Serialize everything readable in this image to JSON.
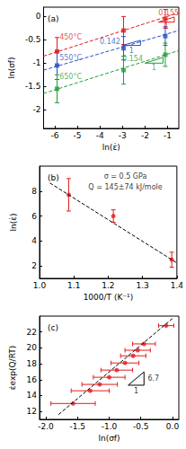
{
  "chart_data": [
    {
      "type": "scatter",
      "title": "(a)",
      "x_label": "ln(ε̇)",
      "y_label": "ln(σf)",
      "xlim": [
        -6.5,
        -0.5
      ],
      "xticks": [
        -6,
        -5,
        -4,
        -3,
        -2,
        -1
      ],
      "ylim": [
        -2.4,
        0.2
      ],
      "yticks": [
        -2,
        -1.5,
        -1,
        -0.5,
        0
      ],
      "marker": "square",
      "series": [
        {
          "name": "450°C",
          "color": "#e41a1c",
          "x": [
            -5.9,
            -2.95,
            -1.1
          ],
          "values": [
            -0.75,
            -0.3,
            -0.05
          ],
          "y_errors": [
            0.3,
            0.3,
            0.2
          ],
          "fit": {
            "x": [
              -6.5,
              -0.5
            ],
            "values": [
              -0.85,
              0.08
            ],
            "color": "#e41a1c"
          },
          "name_at": [
            -5.3,
            -0.45
          ]
        },
        {
          "name": "550°C",
          "color": "#2b50c8",
          "x": [
            -5.9,
            -2.95,
            -1.1
          ],
          "values": [
            -1.05,
            -0.68,
            -0.42
          ],
          "y_errors": [
            0.3,
            0.25,
            0.2
          ],
          "fit": {
            "x": [
              -6.5,
              -0.5
            ],
            "values": [
              -1.15,
              -0.3
            ],
            "color": "#2b50c8"
          },
          "name_at": [
            -5.3,
            -0.88
          ]
        },
        {
          "name": "650°C",
          "color": "#1f9e3a",
          "x": [
            -5.9,
            -2.95,
            -1.1
          ],
          "values": [
            -1.55,
            -1.15,
            -0.82
          ],
          "y_errors": [
            0.3,
            0.3,
            0.25
          ],
          "fit": {
            "x": [
              -6.5,
              -0.5
            ],
            "values": [
              -1.65,
              -0.73
            ],
            "color": "#1f9e3a"
          },
          "name_at": [
            -5.3,
            -1.3
          ]
        }
      ],
      "annotations": [
        {
          "text": "0.155",
          "x": -0.95,
          "y": 0.08,
          "color": "#e41a1c"
        },
        {
          "text": "1",
          "x": -1.05,
          "y": -0.22,
          "color": "#e41a1c"
        },
        {
          "text": "0.142",
          "x": -3.55,
          "y": -0.55,
          "color": "#2b50c8"
        },
        {
          "text": "1",
          "x": -2.6,
          "y": -0.73,
          "color": "#2b50c8"
        },
        {
          "text": "0.154",
          "x": -2.55,
          "y": -0.9,
          "color": "#1f9e3a"
        },
        {
          "text": "1",
          "x": -1.6,
          "y": -1.1,
          "color": "#1f9e3a"
        }
      ],
      "triangles": [
        {
          "points": [
            [
              -1.4,
              -0.12
            ],
            [
              -0.7,
              -0.12
            ],
            [
              -0.7,
              -0.01
            ]
          ],
          "color": "#e41a1c"
        },
        {
          "points": [
            [
              -3.0,
              -0.62
            ],
            [
              -2.2,
              -0.62
            ],
            [
              -2.2,
              -0.51
            ]
          ],
          "color": "#2b50c8"
        },
        {
          "points": [
            [
              -2.0,
              -1.0
            ],
            [
              -1.2,
              -1.0
            ],
            [
              -1.2,
              -0.88
            ]
          ],
          "color": "#1f9e3a"
        }
      ]
    },
    {
      "type": "scatter",
      "title": "(b)",
      "x_label": "1000/T (K⁻¹)",
      "y_label": "ln(ε̇)",
      "xlim": [
        1.0,
        1.4
      ],
      "xticks": [
        {
          "value": 1,
          "label": "1.0"
        },
        1.1,
        1.2,
        1.3,
        1.4
      ],
      "ylim": [
        1,
        10
      ],
      "yticks": [
        2,
        4,
        6,
        8
      ],
      "marker": "circle",
      "series": [
        {
          "color": "#e41a1c",
          "x": [
            1.085,
            1.215,
            1.385
          ],
          "values": [
            7.7,
            6.0,
            2.5
          ],
          "y_errors": [
            1.3,
            0.5,
            0.6
          ],
          "fit": {
            "x": [
              1.03,
              1.4
            ],
            "values": [
              8.65,
              2.24
            ],
            "color": "#000000"
          }
        }
      ],
      "annotations": [
        {
          "text": "σ = 0.5 GPa",
          "x": 1.25,
          "y": 9.2,
          "color": "#000000"
        },
        {
          "text": "Q = 145±74 kJ/mole",
          "x": 1.25,
          "y": 8.3,
          "color": "#000000"
        }
      ],
      "triangles": []
    },
    {
      "type": "scatter",
      "title": "(c)",
      "x_label": "ln(σf)",
      "y_label": "ε̇exp(Q/RT)",
      "xlim": [
        -2.1,
        0.1
      ],
      "xticks": [
        {
          "value": -2,
          "label": "-2.0"
        },
        -1.5,
        {
          "value": -1,
          "label": "-1.0"
        },
        -0.5,
        {
          "value": 0,
          "label": "0.0"
        }
      ],
      "ylim": [
        11,
        24
      ],
      "yticks": [
        12,
        14,
        16,
        18,
        20,
        22
      ],
      "marker": "circle",
      "series": [
        {
          "color": "#e41a1c",
          "x": [
            -1.57,
            -1.3,
            -1.15,
            -1.0,
            -0.88,
            -0.75,
            -0.62,
            -0.55,
            -0.45,
            -0.1
          ],
          "values": [
            13.0,
            14.6,
            15.4,
            16.3,
            17.2,
            18.1,
            19.0,
            19.7,
            20.5,
            22.8
          ],
          "x_errors": [
            0.35,
            0.3,
            0.28,
            0.25,
            0.25,
            0.22,
            0.2,
            0.2,
            0.18,
            0.12
          ],
          "fit": {
            "x": [
              -1.8,
              0.0
            ],
            "values": [
              11.6,
              23.7
            ],
            "color": "#000000"
          }
        }
      ],
      "annotations": [
        {
          "text": "6.7",
          "x": -0.3,
          "y": 16.1,
          "color": "#000000"
        },
        {
          "text": "1",
          "x": -0.575,
          "y": 14.6,
          "color": "#000000"
        }
      ],
      "triangles": [
        {
          "points": [
            [
              -0.7,
              15.3
            ],
            [
              -0.45,
              15.3
            ],
            [
              -0.45,
              16.97
            ]
          ],
          "color": "#000000"
        }
      ]
    }
  ]
}
